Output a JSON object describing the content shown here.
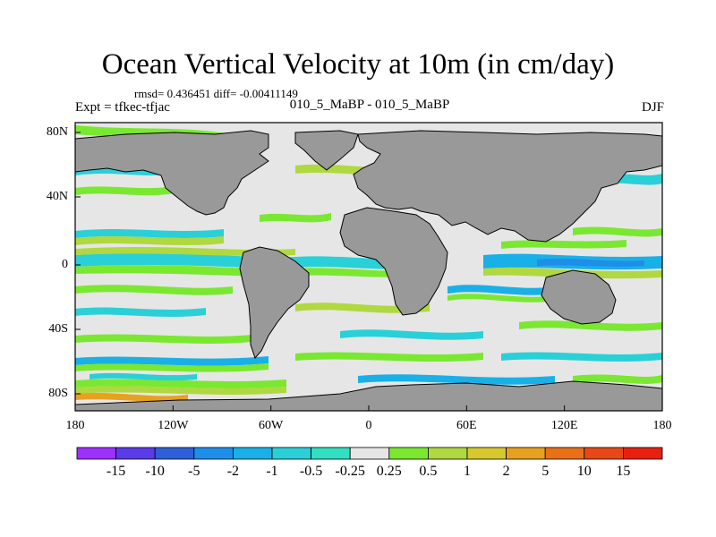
{
  "title": "Ocean Vertical Velocity at 10m (in cm/day)",
  "stats": "rmsd= 0.436451 diff= -0.00411149",
  "left_string": "Expt = tfkec-tfjac",
  "center_string": "010_5_MaBP - 010_5_MaBP",
  "right_string": "DJF",
  "colors": {
    "land": "#999999",
    "ocean_neutral": "#e6e6e6",
    "frame": "#000000"
  },
  "x_ticks": [
    "180",
    "120W",
    "60W",
    "0",
    "60E",
    "120E",
    "180"
  ],
  "y_ticks": [
    "80N",
    "40N",
    "0",
    "40S",
    "80S"
  ],
  "colorbar": {
    "labels": [
      "-15",
      "-10",
      "-5",
      "-2",
      "-1",
      "-0.5",
      "-0.25",
      "0.25",
      "0.5",
      "1",
      "2",
      "5",
      "10",
      "15"
    ],
    "colors": [
      "#9b30ff",
      "#5b3ae8",
      "#2f5fd8",
      "#1f8ee8",
      "#19b0e8",
      "#2ad0d8",
      "#30e0c0",
      "#e6e6e6",
      "#7ae830",
      "#b0d840",
      "#d8c830",
      "#e8a020",
      "#e87018",
      "#e84818",
      "#e82010"
    ]
  }
}
